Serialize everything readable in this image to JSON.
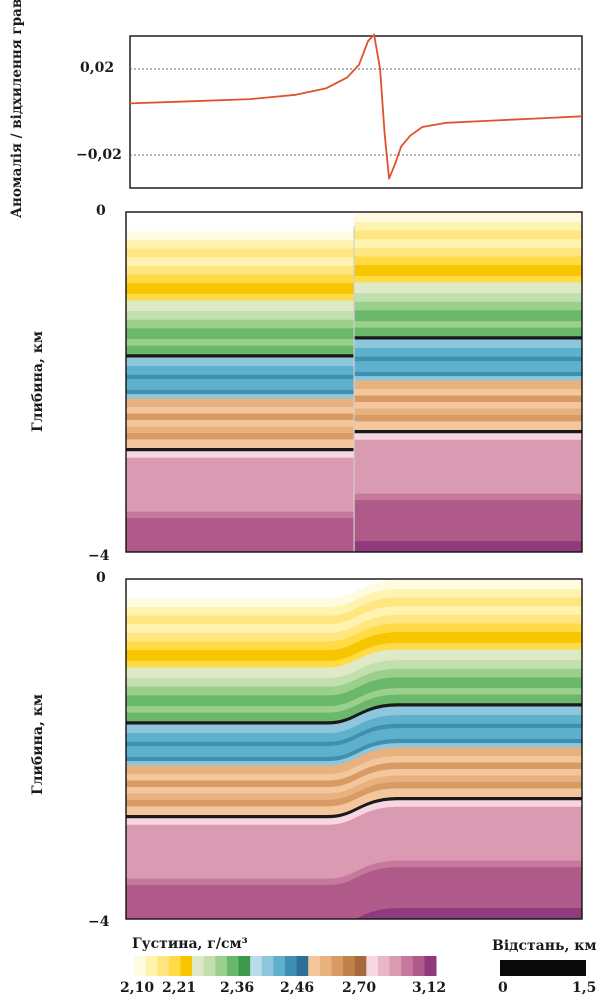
{
  "chart_data": [
    {
      "type": "line",
      "panel": "gravity-anomaly",
      "ylabel": "Аномалія / відхилення гравітаційних полів, мГал",
      "yticks": [
        "0,02",
        "−0,02"
      ],
      "ytick_values": [
        0.02,
        -0.02
      ],
      "ylim": [
        -0.035,
        0.038
      ],
      "xlim": [
        0,
        1.5
      ],
      "grid": "dotted lines at ±0,02",
      "series": [
        {
          "color": "#e0522b",
          "x": [
            0,
            0.2,
            0.4,
            0.55,
            0.65,
            0.72,
            0.76,
            0.79,
            0.81,
            0.83,
            0.845,
            0.86,
            0.88,
            0.9,
            0.93,
            0.97,
            1.05,
            1.2,
            1.35,
            1.5
          ],
          "y": [
            0.004,
            0.005,
            0.006,
            0.008,
            0.011,
            0.016,
            0.022,
            0.033,
            0.036,
            0.02,
            -0.01,
            -0.031,
            -0.024,
            -0.016,
            -0.011,
            -0.007,
            -0.005,
            -0.004,
            -0.003,
            -0.002
          ]
        }
      ]
    },
    {
      "type": "heatmap",
      "panel": "density-model-step",
      "ylabel": "Глибина, км",
      "yticks": [
        "0",
        "−4"
      ],
      "ylim": [
        -4,
        0
      ],
      "xlim": [
        0,
        1.5
      ],
      "fault_x": 0.77
    },
    {
      "type": "heatmap",
      "panel": "density-model-smooth",
      "ylabel": "Глибина, км",
      "yticks": [
        "0",
        "−4"
      ],
      "ylim": [
        -4,
        0
      ],
      "xlim": [
        0,
        1.5
      ],
      "fault_x": 0.8
    }
  ],
  "legend": {
    "title": "Густина, г/см³",
    "tick_labels": [
      "2,10",
      "2,21",
      "2,36",
      "2,46",
      "2,70",
      "3,12"
    ],
    "colors": [
      "#fffbe0",
      "#fff3b0",
      "#ffe680",
      "#ffdb45",
      "#f7c600",
      "#dfe9c8",
      "#c2dfae",
      "#9bcf8c",
      "#6ab86b",
      "#3a9a4a",
      "#b9dde8",
      "#8ec7db",
      "#5fb0cc",
      "#3f8fb3",
      "#2f6f97",
      "#f3c79b",
      "#e8b27f",
      "#d89b65",
      "#c0814d",
      "#a66a3c",
      "#f7d7df",
      "#e9b8c8",
      "#d99ab2",
      "#c7799d",
      "#b05a8a",
      "#8f3a7c"
    ]
  },
  "scale": {
    "title": "Відстань, км",
    "labels": [
      "0",
      "1,5"
    ]
  }
}
